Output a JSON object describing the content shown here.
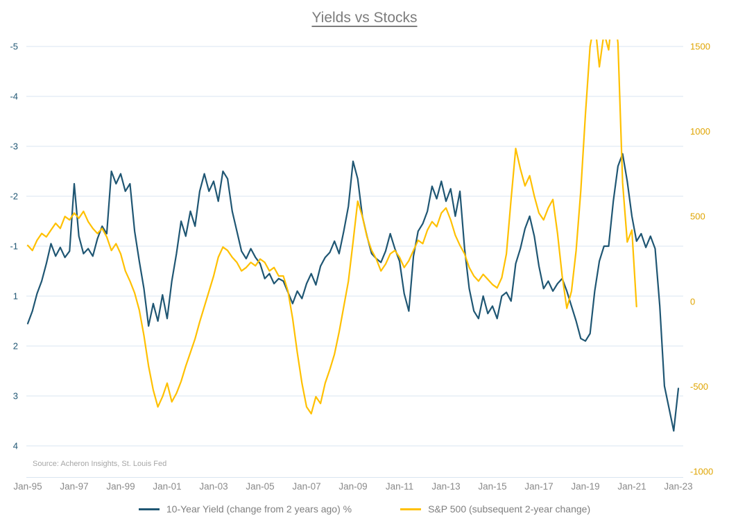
{
  "title": "Yields vs Stocks",
  "source": "Source: Acheron Insights, St. Louis Fed",
  "colors": {
    "yield_line": "#1F5673",
    "sp500_line": "#FFC000",
    "grid": "#D9E4F0",
    "left_axis_text": "#1F5673",
    "right_axis_text": "#DFA400",
    "x_axis_text": "#8A8A8A",
    "legend_text": "#7F7F7F",
    "title_text": "#7C7C7C",
    "source_text": "#A6A6A6"
  },
  "chart_data": {
    "type": "line",
    "title": "Yields vs Stocks",
    "grid": "horizontal-only",
    "legend_position": "bottom-center",
    "x_axis": {
      "ticks": [
        "Jan-95",
        "Jan-97",
        "Jan-99",
        "Jan-01",
        "Jan-03",
        "Jan-05",
        "Jan-07",
        "Jan-09",
        "Jan-11",
        "Jan-13",
        "Jan-15",
        "Jan-17",
        "Jan-19",
        "Jan-21",
        "Jan-23"
      ],
      "start_year": 1995,
      "end_year": 2023
    },
    "left_axis": {
      "inverted": true,
      "zero_label_omitted": true,
      "tick_labels": [
        "-5",
        "-4",
        "-3",
        "-2",
        "-1",
        "1",
        "2",
        "3",
        "4"
      ]
    },
    "right_axis": {
      "tick_labels": [
        "1500",
        "1000",
        "500",
        "0",
        "-500",
        "-1000"
      ],
      "tick_values": [
        1500,
        1000,
        500,
        0,
        -500,
        -1000
      ],
      "range": [
        -1000,
        1500
      ]
    },
    "series": [
      {
        "name": "10-Year Yield (change from 2 years ago) %",
        "axis": "left",
        "color": "#1F5673",
        "x_start": 1995.0,
        "x_step": 0.2,
        "values": [
          1.55,
          1.3,
          0.9,
          0.4,
          -0.3,
          -1.05,
          -0.6,
          -0.95,
          -0.55,
          -0.8,
          -2.25,
          -1.2,
          -0.7,
          -0.9,
          -0.6,
          -1.15,
          -1.4,
          -1.25,
          -2.5,
          -2.25,
          -2.45,
          -2.1,
          -2.25,
          -1.3,
          -0.4,
          0.7,
          1.6,
          1.15,
          1.5,
          0.95,
          1.45,
          0.4,
          -0.7,
          -1.5,
          -1.2,
          -1.7,
          -1.4,
          -2.1,
          -2.45,
          -2.1,
          -2.3,
          -1.9,
          -2.5,
          -2.35,
          -1.7,
          -1.3,
          -0.8,
          -0.5,
          -0.9,
          -0.55,
          -0.3,
          0.3,
          0.1,
          0.5,
          0.3,
          0.4,
          0.85,
          1.15,
          0.8,
          1.05,
          0.5,
          0.1,
          0.55,
          -0.2,
          -0.55,
          -0.75,
          -1.1,
          -0.7,
          -1.3,
          -1.8,
          -2.7,
          -2.35,
          -1.6,
          -1.2,
          -0.7,
          -0.5,
          -0.35,
          -0.8,
          -1.25,
          -0.9,
          -0.4,
          0.9,
          1.3,
          -0.6,
          -1.3,
          -1.45,
          -1.7,
          -2.2,
          -1.95,
          -2.3,
          -1.9,
          -2.15,
          -1.6,
          -2.1,
          -0.9,
          0.7,
          1.3,
          1.45,
          1.0,
          1.35,
          1.2,
          1.45,
          1.0,
          0.85,
          1.1,
          -0.3,
          -0.9,
          -1.35,
          -1.6,
          -1.2,
          -0.2,
          0.7,
          0.4,
          0.8,
          0.5,
          0.3,
          0.8,
          1.2,
          1.5,
          1.85,
          1.9,
          1.75,
          0.8,
          -0.4,
          -1.0,
          -1.0,
          -1.9,
          -2.6,
          -2.85,
          -2.3,
          -1.6,
          -1.1,
          -1.25,
          -0.95,
          -1.2,
          -0.9,
          1.2,
          2.8,
          3.25,
          3.7,
          2.85
        ]
      },
      {
        "name": "S&P 500 (subsequent 2-year change)",
        "axis": "right",
        "color": "#FFC000",
        "x_start": 1995.0,
        "x_step": 0.2,
        "values": [
          330,
          300,
          360,
          400,
          380,
          420,
          460,
          430,
          500,
          480,
          520,
          490,
          530,
          470,
          430,
          400,
          430,
          380,
          300,
          340,
          280,
          180,
          120,
          50,
          -50,
          -200,
          -380,
          -520,
          -620,
          -560,
          -480,
          -590,
          -540,
          -470,
          -380,
          -300,
          -220,
          -120,
          -30,
          60,
          150,
          260,
          320,
          300,
          260,
          230,
          180,
          200,
          230,
          210,
          250,
          230,
          180,
          200,
          150,
          150,
          60,
          -100,
          -300,
          -480,
          -620,
          -660,
          -560,
          -600,
          -480,
          -400,
          -310,
          -180,
          -30,
          120,
          350,
          590,
          500,
          380,
          300,
          250,
          180,
          220,
          280,
          300,
          260,
          200,
          240,
          300,
          360,
          340,
          420,
          470,
          440,
          520,
          550,
          480,
          390,
          330,
          280,
          200,
          150,
          120,
          160,
          130,
          100,
          80,
          140,
          280,
          600,
          900,
          780,
          680,
          740,
          620,
          520,
          480,
          550,
          600,
          400,
          150,
          -40,
          60,
          300,
          650,
          1100,
          1500,
          1650,
          1380,
          1580,
          1480,
          1750,
          1520,
          700,
          350,
          420,
          -30
        ]
      }
    ]
  }
}
